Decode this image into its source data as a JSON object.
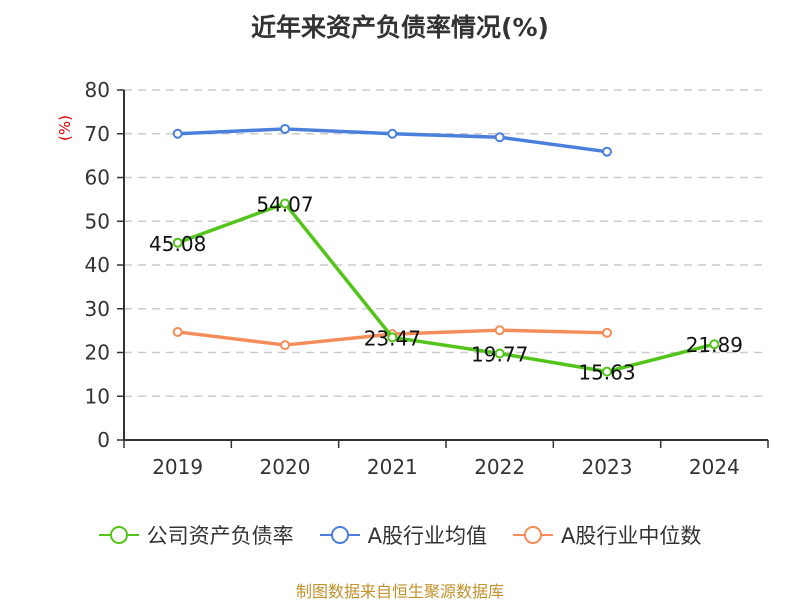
{
  "chart_data": {
    "type": "line",
    "title": "近年来资产负债率情况(%)",
    "xlabel": "",
    "ylabel": "(%)",
    "ylim": [
      0,
      80
    ],
    "yticks": [
      0,
      10,
      20,
      30,
      40,
      50,
      60,
      70,
      80
    ],
    "grid": true,
    "legend_position": "bottom",
    "categories": [
      "2019",
      "2020",
      "2021",
      "2022",
      "2023",
      "2024"
    ],
    "series": [
      {
        "name": "公司资产负债率",
        "color": "#52c41a",
        "values": [
          45.08,
          54.07,
          23.47,
          19.77,
          15.63,
          21.89
        ],
        "labels": [
          "45.08",
          "54.07",
          "23.47",
          "19.77",
          "15.63",
          "21.89"
        ]
      },
      {
        "name": "A股行业均值",
        "color": "#4a7fdb",
        "values": [
          70.0,
          71.1,
          70.0,
          69.2,
          65.9,
          null
        ]
      },
      {
        "name": "A股行业中位数",
        "color": "#f58d5a",
        "values": [
          24.7,
          21.7,
          24.2,
          25.1,
          24.5,
          null
        ]
      }
    ],
    "source": "制图数据来自恒生聚源数据库"
  }
}
